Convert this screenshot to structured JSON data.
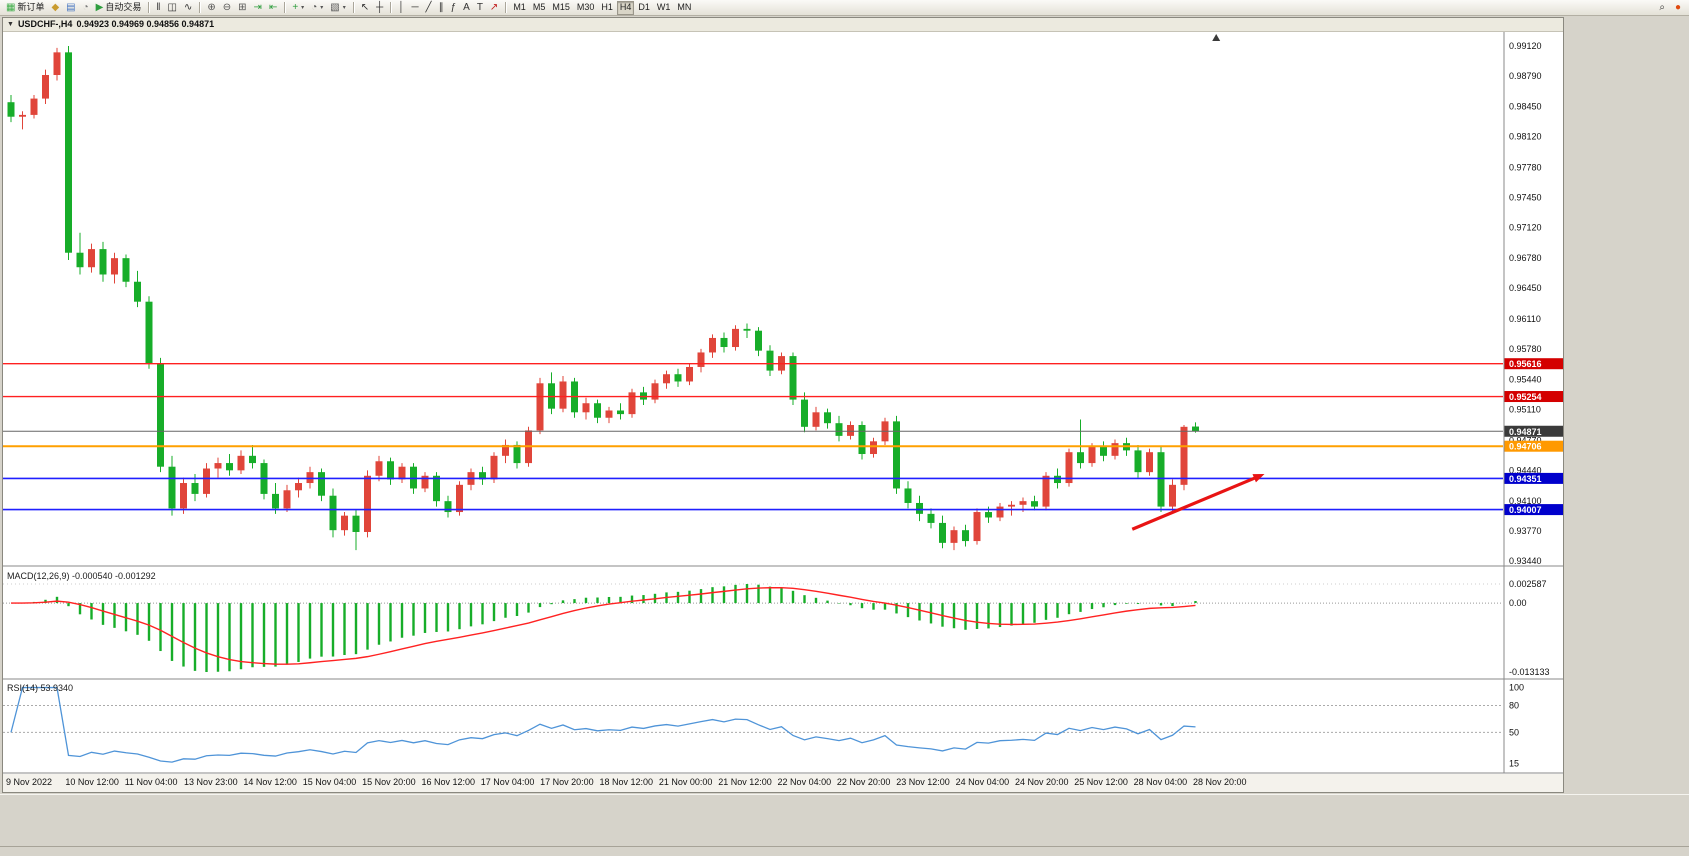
{
  "toolbar": {
    "dropdown_glyph": "▾",
    "groups": [
      {
        "items": [
          {
            "name": "new-order-button",
            "glyph": "▦",
            "glyph_color": "#3fae49",
            "label": "新订单"
          },
          {
            "name": "navigator-button",
            "glyph": "◆",
            "glyph_color": "#c99b2e"
          },
          {
            "name": "market-watch-button",
            "glyph": "▤",
            "glyph_color": "#4a78c2"
          },
          {
            "name": "history-center-button",
            "glyph": "◔",
            "glyph_color": "#7a7a7a"
          },
          {
            "name": "auto-trading-button",
            "glyph": "▶",
            "glyph_color": "#2f9e3f",
            "label": "自动交易"
          }
        ]
      },
      {
        "items": [
          {
            "name": "bar-chart-button",
            "glyph": "‖",
            "glyph_color": "#333333"
          },
          {
            "name": "candlestick-chart-button",
            "glyph": "◫",
            "glyph_color": "#333333"
          },
          {
            "name": "line-chart-button",
            "glyph": "∿",
            "glyph_color": "#333333"
          }
        ]
      },
      {
        "items": [
          {
            "name": "zoom-in-button",
            "glyph": "⊕",
            "glyph_color": "#555555"
          },
          {
            "name": "zoom-out-button",
            "glyph": "⊖",
            "glyph_color": "#555555"
          },
          {
            "name": "tile-windows-button",
            "glyph": "⊞",
            "glyph_color": "#555555"
          },
          {
            "name": "auto-scroll-button",
            "glyph": "⇥",
            "glyph_color": "#2f9e3f"
          },
          {
            "name": "chart-shift-button",
            "glyph": "⇤",
            "glyph_color": "#2f9e3f"
          }
        ]
      },
      {
        "items": [
          {
            "name": "indicators-button",
            "glyph": "+",
            "glyph_color": "#2f9e3f",
            "dropdown": true
          },
          {
            "name": "periods-button",
            "glyph": "◔",
            "glyph_color": "#555555",
            "dropdown": true
          },
          {
            "name": "templates-button",
            "glyph": "▧",
            "glyph_color": "#555555",
            "dropdown": true
          }
        ]
      },
      {
        "items": [
          {
            "name": "cursor-button",
            "glyph": "↖",
            "glyph_color": "#333333"
          },
          {
            "name": "crosshair-button",
            "glyph": "┼",
            "glyph_color": "#333333"
          }
        ]
      },
      {
        "items": [
          {
            "name": "vertical-line-button",
            "glyph": "│",
            "glyph_color": "#333333"
          },
          {
            "name": "horizontal-line-button",
            "glyph": "─",
            "glyph_color": "#333333"
          },
          {
            "name": "trendline-button",
            "glyph": "╱",
            "glyph_color": "#333333"
          },
          {
            "name": "channel-button",
            "glyph": "∥",
            "glyph_color": "#333333"
          },
          {
            "name": "fibonacci-button",
            "glyph": "ƒ",
            "glyph_color": "#333333"
          },
          {
            "name": "text-button",
            "glyph": "A",
            "glyph_color": "#333333"
          },
          {
            "name": "label-button",
            "glyph": "T",
            "glyph_color": "#333333"
          },
          {
            "name": "arrows-button",
            "glyph": "↗",
            "glyph_color": "#c22020"
          }
        ]
      },
      {
        "items": [
          {
            "name": "tf-m1-button",
            "label": "M1"
          },
          {
            "name": "tf-m5-button",
            "label": "M5"
          },
          {
            "name": "tf-m15-button",
            "label": "M15"
          },
          {
            "name": "tf-m30-button",
            "label": "M30"
          },
          {
            "name": "tf-h1-button",
            "label": "H1"
          },
          {
            "name": "tf-h4-button",
            "label": "H4",
            "active": true
          },
          {
            "name": "tf-d1-button",
            "label": "D1"
          },
          {
            "name": "tf-w1-button",
            "label": "W1"
          },
          {
            "name": "tf-mn-button",
            "label": "MN"
          }
        ]
      }
    ],
    "right_items": [
      {
        "name": "search-button",
        "glyph": "⌕",
        "glyph_color": "#333333"
      },
      {
        "name": "community-button",
        "glyph": "●",
        "glyph_color": "#e04a10"
      }
    ]
  },
  "chart_window": {
    "dropdown_glyph": "▼",
    "title": "USDCHF-,H4",
    "ohlc": "0.94923 0.94969 0.94856 0.94871"
  },
  "chart_data": {
    "type": "candlestick",
    "symbol": "USDCHF-",
    "timeframe": "H4",
    "price_axis_labels": [
      "0.99120",
      "0.98790",
      "0.98450",
      "0.98120",
      "0.97780",
      "0.97450",
      "0.97120",
      "0.96780",
      "0.96450",
      "0.96110",
      "0.95780",
      "0.95440",
      "0.95110",
      "0.94770",
      "0.94440",
      "0.94100",
      "0.93770",
      "0.93440"
    ],
    "dates": [
      "9 Nov 2022",
      "10 Nov 12:00",
      "11 Nov 04:00",
      "13 Nov 23:00",
      "14 Nov 12:00",
      "15 Nov 04:00",
      "15 Nov 20:00",
      "16 Nov 12:00",
      "17 Nov 04:00",
      "17 Nov 20:00",
      "18 Nov 12:00",
      "21 Nov 00:00",
      "21 Nov 12:00",
      "22 Nov 04:00",
      "22 Nov 20:00",
      "23 Nov 12:00",
      "24 Nov 04:00",
      "24 Nov 20:00",
      "25 Nov 12:00",
      "28 Nov 04:00",
      "28 Nov 20:00"
    ],
    "colors": {
      "up": "#e0453a",
      "down": "#17ad29",
      "macd_hist": "#17ad29",
      "macd_signal": "#ff2222",
      "rsi_line": "#4f94d8",
      "background": "#ffffff",
      "axis_text": "#111111"
    },
    "candles": [
      [
        0.985,
        0.9858,
        0.9828,
        0.9834
      ],
      [
        0.9834,
        0.984,
        0.982,
        0.9836
      ],
      [
        0.9836,
        0.9858,
        0.9832,
        0.9854
      ],
      [
        0.9854,
        0.9886,
        0.9848,
        0.988
      ],
      [
        0.988,
        0.991,
        0.9874,
        0.9905
      ],
      [
        0.9905,
        0.9912,
        0.9676,
        0.9684
      ],
      [
        0.9684,
        0.9706,
        0.966,
        0.9668
      ],
      [
        0.9668,
        0.9694,
        0.9662,
        0.9688
      ],
      [
        0.9688,
        0.9696,
        0.9652,
        0.966
      ],
      [
        0.966,
        0.9684,
        0.965,
        0.9678
      ],
      [
        0.9678,
        0.9682,
        0.9646,
        0.9652
      ],
      [
        0.9652,
        0.9664,
        0.9624,
        0.963
      ],
      [
        0.963,
        0.9636,
        0.9556,
        0.9562
      ],
      [
        0.9562,
        0.9568,
        0.9442,
        0.9448
      ],
      [
        0.9448,
        0.946,
        0.9394,
        0.9402
      ],
      [
        0.9402,
        0.9436,
        0.9396,
        0.943
      ],
      [
        0.943,
        0.944,
        0.941,
        0.9418
      ],
      [
        0.9418,
        0.9452,
        0.9414,
        0.9446
      ],
      [
        0.9446,
        0.9458,
        0.9436,
        0.9452
      ],
      [
        0.9452,
        0.9462,
        0.9438,
        0.9444
      ],
      [
        0.9444,
        0.9466,
        0.944,
        0.946
      ],
      [
        0.946,
        0.9472,
        0.9446,
        0.9452
      ],
      [
        0.9452,
        0.9456,
        0.9412,
        0.9418
      ],
      [
        0.9418,
        0.943,
        0.9396,
        0.9402
      ],
      [
        0.9402,
        0.9428,
        0.9398,
        0.9422
      ],
      [
        0.9422,
        0.9436,
        0.9414,
        0.943
      ],
      [
        0.943,
        0.9448,
        0.9424,
        0.9442
      ],
      [
        0.9442,
        0.9446,
        0.941,
        0.9416
      ],
      [
        0.9416,
        0.9424,
        0.937,
        0.9378
      ],
      [
        0.9378,
        0.9398,
        0.9372,
        0.9394
      ],
      [
        0.9394,
        0.94,
        0.9356,
        0.9376
      ],
      [
        0.9376,
        0.9444,
        0.937,
        0.9438
      ],
      [
        0.9438,
        0.946,
        0.9432,
        0.9454
      ],
      [
        0.9454,
        0.9458,
        0.9428,
        0.9434
      ],
      [
        0.9434,
        0.9452,
        0.943,
        0.9448
      ],
      [
        0.9448,
        0.9452,
        0.9418,
        0.9424
      ],
      [
        0.9424,
        0.9442,
        0.942,
        0.9438
      ],
      [
        0.9438,
        0.9442,
        0.9404,
        0.941
      ],
      [
        0.941,
        0.9416,
        0.9392,
        0.9398
      ],
      [
        0.9398,
        0.9432,
        0.9394,
        0.9428
      ],
      [
        0.9428,
        0.9446,
        0.9422,
        0.9442
      ],
      [
        0.9442,
        0.9448,
        0.9428,
        0.9434
      ],
      [
        0.9434,
        0.9464,
        0.943,
        0.946
      ],
      [
        0.946,
        0.9478,
        0.9452,
        0.9472
      ],
      [
        0.9472,
        0.9476,
        0.9446,
        0.9452
      ],
      [
        0.9452,
        0.9492,
        0.9448,
        0.9488
      ],
      [
        0.9488,
        0.9546,
        0.9484,
        0.954
      ],
      [
        0.954,
        0.9552,
        0.9506,
        0.9512
      ],
      [
        0.9512,
        0.9548,
        0.9508,
        0.9542
      ],
      [
        0.9542,
        0.9546,
        0.9502,
        0.9508
      ],
      [
        0.9508,
        0.9524,
        0.95,
        0.9518
      ],
      [
        0.9518,
        0.9522,
        0.9496,
        0.9502
      ],
      [
        0.9502,
        0.9514,
        0.9496,
        0.951
      ],
      [
        0.951,
        0.9518,
        0.95,
        0.9506
      ],
      [
        0.9506,
        0.9534,
        0.9502,
        0.953
      ],
      [
        0.953,
        0.9536,
        0.9516,
        0.9522
      ],
      [
        0.9522,
        0.9544,
        0.9518,
        0.954
      ],
      [
        0.954,
        0.9554,
        0.9534,
        0.955
      ],
      [
        0.955,
        0.9556,
        0.9536,
        0.9542
      ],
      [
        0.9542,
        0.9562,
        0.9538,
        0.9558
      ],
      [
        0.9558,
        0.9578,
        0.9552,
        0.9574
      ],
      [
        0.9574,
        0.9594,
        0.9568,
        0.959
      ],
      [
        0.959,
        0.9596,
        0.9574,
        0.958
      ],
      [
        0.958,
        0.9604,
        0.9576,
        0.96
      ],
      [
        0.96,
        0.9606,
        0.959,
        0.9598
      ],
      [
        0.9598,
        0.9602,
        0.957,
        0.9576
      ],
      [
        0.9576,
        0.9582,
        0.9548,
        0.9554
      ],
      [
        0.9554,
        0.9574,
        0.955,
        0.957
      ],
      [
        0.957,
        0.9574,
        0.9516,
        0.9522
      ],
      [
        0.9522,
        0.953,
        0.9486,
        0.9492
      ],
      [
        0.9492,
        0.9514,
        0.9488,
        0.9508
      ],
      [
        0.9508,
        0.9512,
        0.949,
        0.9496
      ],
      [
        0.9496,
        0.9504,
        0.9476,
        0.9482
      ],
      [
        0.9482,
        0.9498,
        0.9478,
        0.9494
      ],
      [
        0.9494,
        0.9498,
        0.9456,
        0.9462
      ],
      [
        0.9462,
        0.948,
        0.9458,
        0.9476
      ],
      [
        0.9476,
        0.9502,
        0.9472,
        0.9498
      ],
      [
        0.9498,
        0.9504,
        0.9418,
        0.9424
      ],
      [
        0.9424,
        0.9432,
        0.9402,
        0.9408
      ],
      [
        0.9408,
        0.9416,
        0.9388,
        0.9396
      ],
      [
        0.9396,
        0.9402,
        0.938,
        0.9386
      ],
      [
        0.9386,
        0.9394,
        0.9358,
        0.9364
      ],
      [
        0.9364,
        0.9382,
        0.9356,
        0.9378
      ],
      [
        0.9378,
        0.9384,
        0.936,
        0.9366
      ],
      [
        0.9366,
        0.9402,
        0.9362,
        0.9398
      ],
      [
        0.9398,
        0.9404,
        0.9386,
        0.9392
      ],
      [
        0.9392,
        0.9408,
        0.9388,
        0.9404
      ],
      [
        0.9404,
        0.941,
        0.9394,
        0.9406
      ],
      [
        0.9406,
        0.9414,
        0.9398,
        0.941
      ],
      [
        0.941,
        0.9416,
        0.94,
        0.9404
      ],
      [
        0.9404,
        0.9442,
        0.94,
        0.9438
      ],
      [
        0.9438,
        0.9446,
        0.9424,
        0.943
      ],
      [
        0.943,
        0.9468,
        0.9426,
        0.9464
      ],
      [
        0.9464,
        0.95,
        0.9446,
        0.9452
      ],
      [
        0.9452,
        0.9474,
        0.9448,
        0.947
      ],
      [
        0.947,
        0.9476,
        0.9454,
        0.946
      ],
      [
        0.946,
        0.9478,
        0.9456,
        0.9474
      ],
      [
        0.9474,
        0.948,
        0.946,
        0.9466
      ],
      [
        0.9466,
        0.9472,
        0.9436,
        0.9442
      ],
      [
        0.9442,
        0.9468,
        0.9438,
        0.9464
      ],
      [
        0.9464,
        0.947,
        0.9398,
        0.9404
      ],
      [
        0.9404,
        0.9434,
        0.9398,
        0.9428
      ],
      [
        0.9428,
        0.9494,
        0.9422,
        0.9492
      ],
      [
        0.94923,
        0.94969,
        0.94856,
        0.94871
      ]
    ],
    "hlines": [
      {
        "price": 0.95616,
        "label": "0.95616",
        "line": "#ff2020",
        "tag": "#d40000",
        "width": 1.4
      },
      {
        "price": 0.95254,
        "label": "0.95254",
        "line": "#ff2020",
        "tag": "#d40000",
        "width": 1.4
      },
      {
        "price": 0.94871,
        "label": "0.94871",
        "line": "#666666",
        "tag": "#3a3a3a",
        "width": 1,
        "role": "bid-price"
      },
      {
        "price": 0.94706,
        "label": "0.94706",
        "line": "#ffa000",
        "tag": "#ff9900",
        "width": 2
      },
      {
        "price": 0.94351,
        "label": "0.94351",
        "line": "#2020ff",
        "tag": "#0000cc",
        "width": 1.6
      },
      {
        "price": 0.94007,
        "label": "0.94007",
        "line": "#2020ff",
        "tag": "#0000cc",
        "width": 1.6
      }
    ],
    "arrow": {
      "from_index": 97.5,
      "from_price": 0.9379,
      "to_index": 109,
      "to_price": 0.944,
      "color": "#e81414"
    },
    "shift_marker_index": 104.8,
    "macd": {
      "label": "MACD(12,26,9)",
      "value_main": "-0.000540",
      "value_signal": "-0.001292",
      "axis_max_label": "0.002587",
      "axis_zero_label": "0.00",
      "axis_min_label": "-0.013133",
      "fast": 12,
      "slow": 26,
      "signal": 9
    },
    "rsi": {
      "label": "RSI(14)",
      "value": "53.9340",
      "period": 14,
      "axis_labels": [
        {
          "v": 100,
          "t": "100"
        },
        {
          "v": 80,
          "t": "80"
        },
        {
          "v": 50,
          "t": "50"
        },
        {
          "v": 15,
          "t": "15"
        }
      ],
      "levels": [
        80,
        50
      ]
    }
  }
}
